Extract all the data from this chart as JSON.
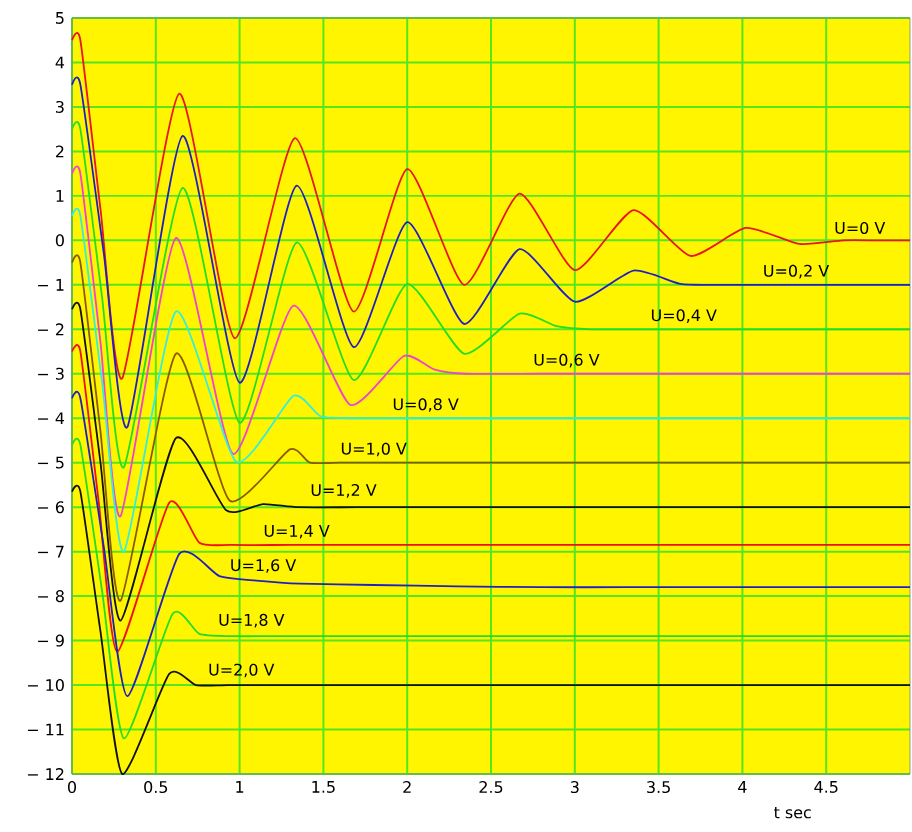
{
  "chart_data": {
    "type": "line",
    "xlabel": "t sec",
    "xlim": [
      0,
      5
    ],
    "ylim": [
      -12,
      5
    ],
    "xticks": [
      0,
      0.5,
      1,
      1.5,
      2,
      2.5,
      3,
      3.5,
      4,
      4.5
    ],
    "yticks": [
      {
        "value": -12,
        "label": "− 12"
      },
      {
        "value": -11,
        "label": "− 11"
      },
      {
        "value": -10,
        "label": "− 10"
      },
      {
        "value": -9,
        "label": "− 9"
      },
      {
        "value": -8,
        "label": "− 8"
      },
      {
        "value": -7,
        "label": "− 7"
      },
      {
        "value": -6,
        "label": "− 6"
      },
      {
        "value": -5,
        "label": "− 5"
      },
      {
        "value": -4,
        "label": "− 4"
      },
      {
        "value": -3,
        "label": "− 3"
      },
      {
        "value": -2,
        "label": "− 2"
      },
      {
        "value": -1,
        "label": "− 1"
      },
      0,
      1,
      2,
      3,
      4,
      5
    ],
    "grid": true,
    "marker": "none",
    "line_style": "solid",
    "series": [
      {
        "color": "#e8141e",
        "x": [
          0,
          0.05,
          0.17,
          0.3,
          0.64,
          0.97,
          1.33,
          1.68,
          2.0,
          2.34,
          2.67,
          3.0,
          3.35,
          3.69,
          4.02,
          4.34,
          4.6,
          4.8,
          5
        ],
        "values": [
          4.5,
          4.5,
          0.7,
          -3.1,
          3.3,
          -2.2,
          2.3,
          -1.6,
          1.6,
          -1.0,
          1.05,
          -0.67,
          0.68,
          -0.35,
          0.28,
          -0.08,
          0,
          0,
          0
        ]
      },
      {
        "color": "#2020c0",
        "x": [
          0,
          0.05,
          0.19,
          0.33,
          0.66,
          1.0,
          1.34,
          1.68,
          2.0,
          2.34,
          2.67,
          3.0,
          3.35,
          3.63,
          3.85,
          4.2,
          4.6,
          5
        ],
        "values": [
          3.5,
          3.5,
          -0.3,
          -4.2,
          2.35,
          -3.2,
          1.23,
          -2.4,
          0.41,
          -1.88,
          -0.2,
          -1.38,
          -0.68,
          -0.98,
          -1.0,
          -1.0,
          -1.0,
          -1.0
        ]
      },
      {
        "color": "#22dd22",
        "x": [
          0,
          0.05,
          0.18,
          0.31,
          0.66,
          1.0,
          1.34,
          1.68,
          2.0,
          2.34,
          2.67,
          2.89,
          3.1,
          3.5,
          4.0,
          4.5,
          5
        ],
        "values": [
          2.5,
          2.5,
          -1.3,
          -5.1,
          1.18,
          -4.1,
          -0.05,
          -3.14,
          -0.98,
          -2.55,
          -1.65,
          -1.93,
          -2.0,
          -2.0,
          -2.0,
          -2.0,
          -2.0
        ]
      },
      {
        "color": "#ee44cc",
        "x": [
          0,
          0.05,
          0.17,
          0.29,
          0.62,
          0.96,
          1.32,
          1.66,
          1.98,
          2.16,
          2.35,
          2.8,
          3.3,
          3.8,
          4.3,
          5
        ],
        "values": [
          1.5,
          1.5,
          -2.3,
          -6.2,
          0.05,
          -4.8,
          -1.47,
          -3.7,
          -2.6,
          -2.9,
          -3.0,
          -3.0,
          -3.0,
          -3.0,
          -3.0,
          -3.0
        ]
      },
      {
        "color": "#33eedd",
        "x": [
          0,
          0.05,
          0.18,
          0.31,
          0.62,
          0.98,
          1.32,
          1.48,
          1.65,
          2.0,
          2.5,
          3.0,
          3.5,
          4.0,
          4.5,
          5
        ],
        "values": [
          0.55,
          0.55,
          -3.2,
          -7.0,
          -1.6,
          -4.98,
          -3.5,
          -3.95,
          -4.0,
          -4.0,
          -4.0,
          -4.0,
          -4.0,
          -4.0,
          -4.0,
          -4.0
        ]
      },
      {
        "color": "#8b5a00",
        "x": [
          0,
          0.05,
          0.17,
          0.29,
          0.62,
          0.94,
          1.3,
          1.42,
          1.6,
          2.0,
          2.5,
          3.0,
          3.5,
          4.0,
          4.5,
          5
        ],
        "values": [
          -0.5,
          -0.5,
          -4.3,
          -8.1,
          -2.55,
          -5.85,
          -4.7,
          -5.0,
          -5.0,
          -5.0,
          -5.0,
          -5.0,
          -5.0,
          -5.0,
          -5.0,
          -5.0
        ]
      },
      {
        "color": "#111111",
        "x": [
          0,
          0.05,
          0.17,
          0.29,
          0.62,
          0.92,
          1.14,
          1.35,
          1.7,
          2.2,
          2.7,
          3.2,
          3.7,
          4.2,
          4.6,
          5
        ],
        "values": [
          -1.55,
          -1.55,
          -5.0,
          -8.55,
          -4.45,
          -6.07,
          -5.93,
          -6.0,
          -6.0,
          -6.0,
          -6.0,
          -6.0,
          -6.0,
          -6.0,
          -6.0,
          -6.0
        ]
      },
      {
        "color": "#ee1111",
        "x": [
          0,
          0.05,
          0.16,
          0.27,
          0.58,
          0.76,
          0.95,
          1.3,
          1.8,
          2.3,
          2.8,
          3.3,
          3.8,
          4.3,
          4.7,
          5
        ],
        "values": [
          -2.5,
          -2.5,
          -5.9,
          -9.25,
          -5.9,
          -6.8,
          -6.85,
          -6.85,
          -6.85,
          -6.85,
          -6.85,
          -6.85,
          -6.85,
          -6.85,
          -6.85,
          -6.85
        ]
      },
      {
        "color": "#2020c0",
        "x": [
          0,
          0.05,
          0.19,
          0.33,
          0.64,
          0.88,
          1.1,
          1.36,
          1.8,
          2.3,
          2.8,
          3.3,
          3.8,
          4.3,
          4.7,
          5
        ],
        "values": [
          -3.55,
          -3.55,
          -6.9,
          -10.25,
          -7.05,
          -7.55,
          -7.65,
          -7.72,
          -7.75,
          -7.78,
          -7.8,
          -7.8,
          -7.8,
          -7.8,
          -7.8,
          -7.8
        ]
      },
      {
        "color": "#22dd22",
        "x": [
          0,
          0.05,
          0.18,
          0.31,
          0.6,
          0.76,
          0.95,
          1.3,
          1.8,
          2.3,
          2.8,
          3.3,
          3.8,
          4.3,
          4.7,
          5
        ],
        "values": [
          -4.6,
          -4.6,
          -7.9,
          -11.2,
          -8.4,
          -8.85,
          -8.9,
          -8.9,
          -8.9,
          -8.9,
          -8.9,
          -8.9,
          -8.9,
          -8.9,
          -8.9,
          -8.9
        ]
      },
      {
        "color": "#111111",
        "x": [
          0,
          0.05,
          0.17,
          0.3,
          0.58,
          0.74,
          0.93,
          1.3,
          1.8,
          2.3,
          2.8,
          3.3,
          3.8,
          4.3,
          4.7,
          5
        ],
        "values": [
          -5.65,
          -5.65,
          -8.8,
          -12.0,
          -9.75,
          -10.0,
          -10.0,
          -10.0,
          -10.0,
          -10.0,
          -10.0,
          -10.0,
          -10.0,
          -10.0,
          -10.0,
          -10.0
        ]
      }
    ],
    "annotations": [
      {
        "text": "U=0 V",
        "x": 4.7,
        "y": 0
      },
      {
        "text": "U=0,2 V",
        "x": 4.32,
        "y": -1.0
      },
      {
        "text": "U=0,4 V",
        "x": 3.65,
        "y": -2.0
      },
      {
        "text": "U=0,6 V",
        "x": 2.95,
        "y": -3.0
      },
      {
        "text": "U=0,8 V",
        "x": 2.11,
        "y": -4.0
      },
      {
        "text": "U=1,0 V",
        "x": 1.8,
        "y": -5.0
      },
      {
        "text": "U=1,2 V",
        "x": 1.62,
        "y": -5.93
      },
      {
        "text": "U=1,4 V",
        "x": 1.34,
        "y": -6.85
      },
      {
        "text": "U=1,6 V",
        "x": 1.14,
        "y": -7.62
      },
      {
        "text": "U=1,8 V",
        "x": 1.07,
        "y": -8.85
      },
      {
        "text": "U=2,0 V",
        "x": 1.01,
        "y": -9.97
      }
    ]
  }
}
